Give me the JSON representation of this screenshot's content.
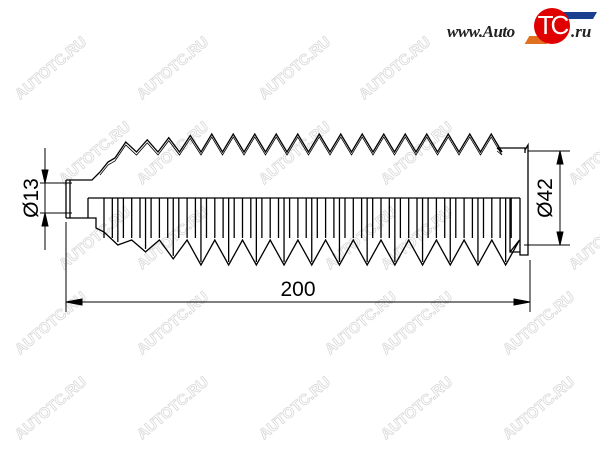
{
  "watermark": {
    "text": "AUTOTC.RU"
  },
  "logo": {
    "prefix": "www.Auto",
    "emblem": "TC",
    "suffix": ".ru",
    "colors": {
      "circle": "#e00000",
      "bar": "#1a3f8f",
      "accent": "#e07020"
    }
  },
  "dimensions": {
    "inner_diameter": "Ø13",
    "outer_diameter": "Ø42",
    "length": "200"
  }
}
